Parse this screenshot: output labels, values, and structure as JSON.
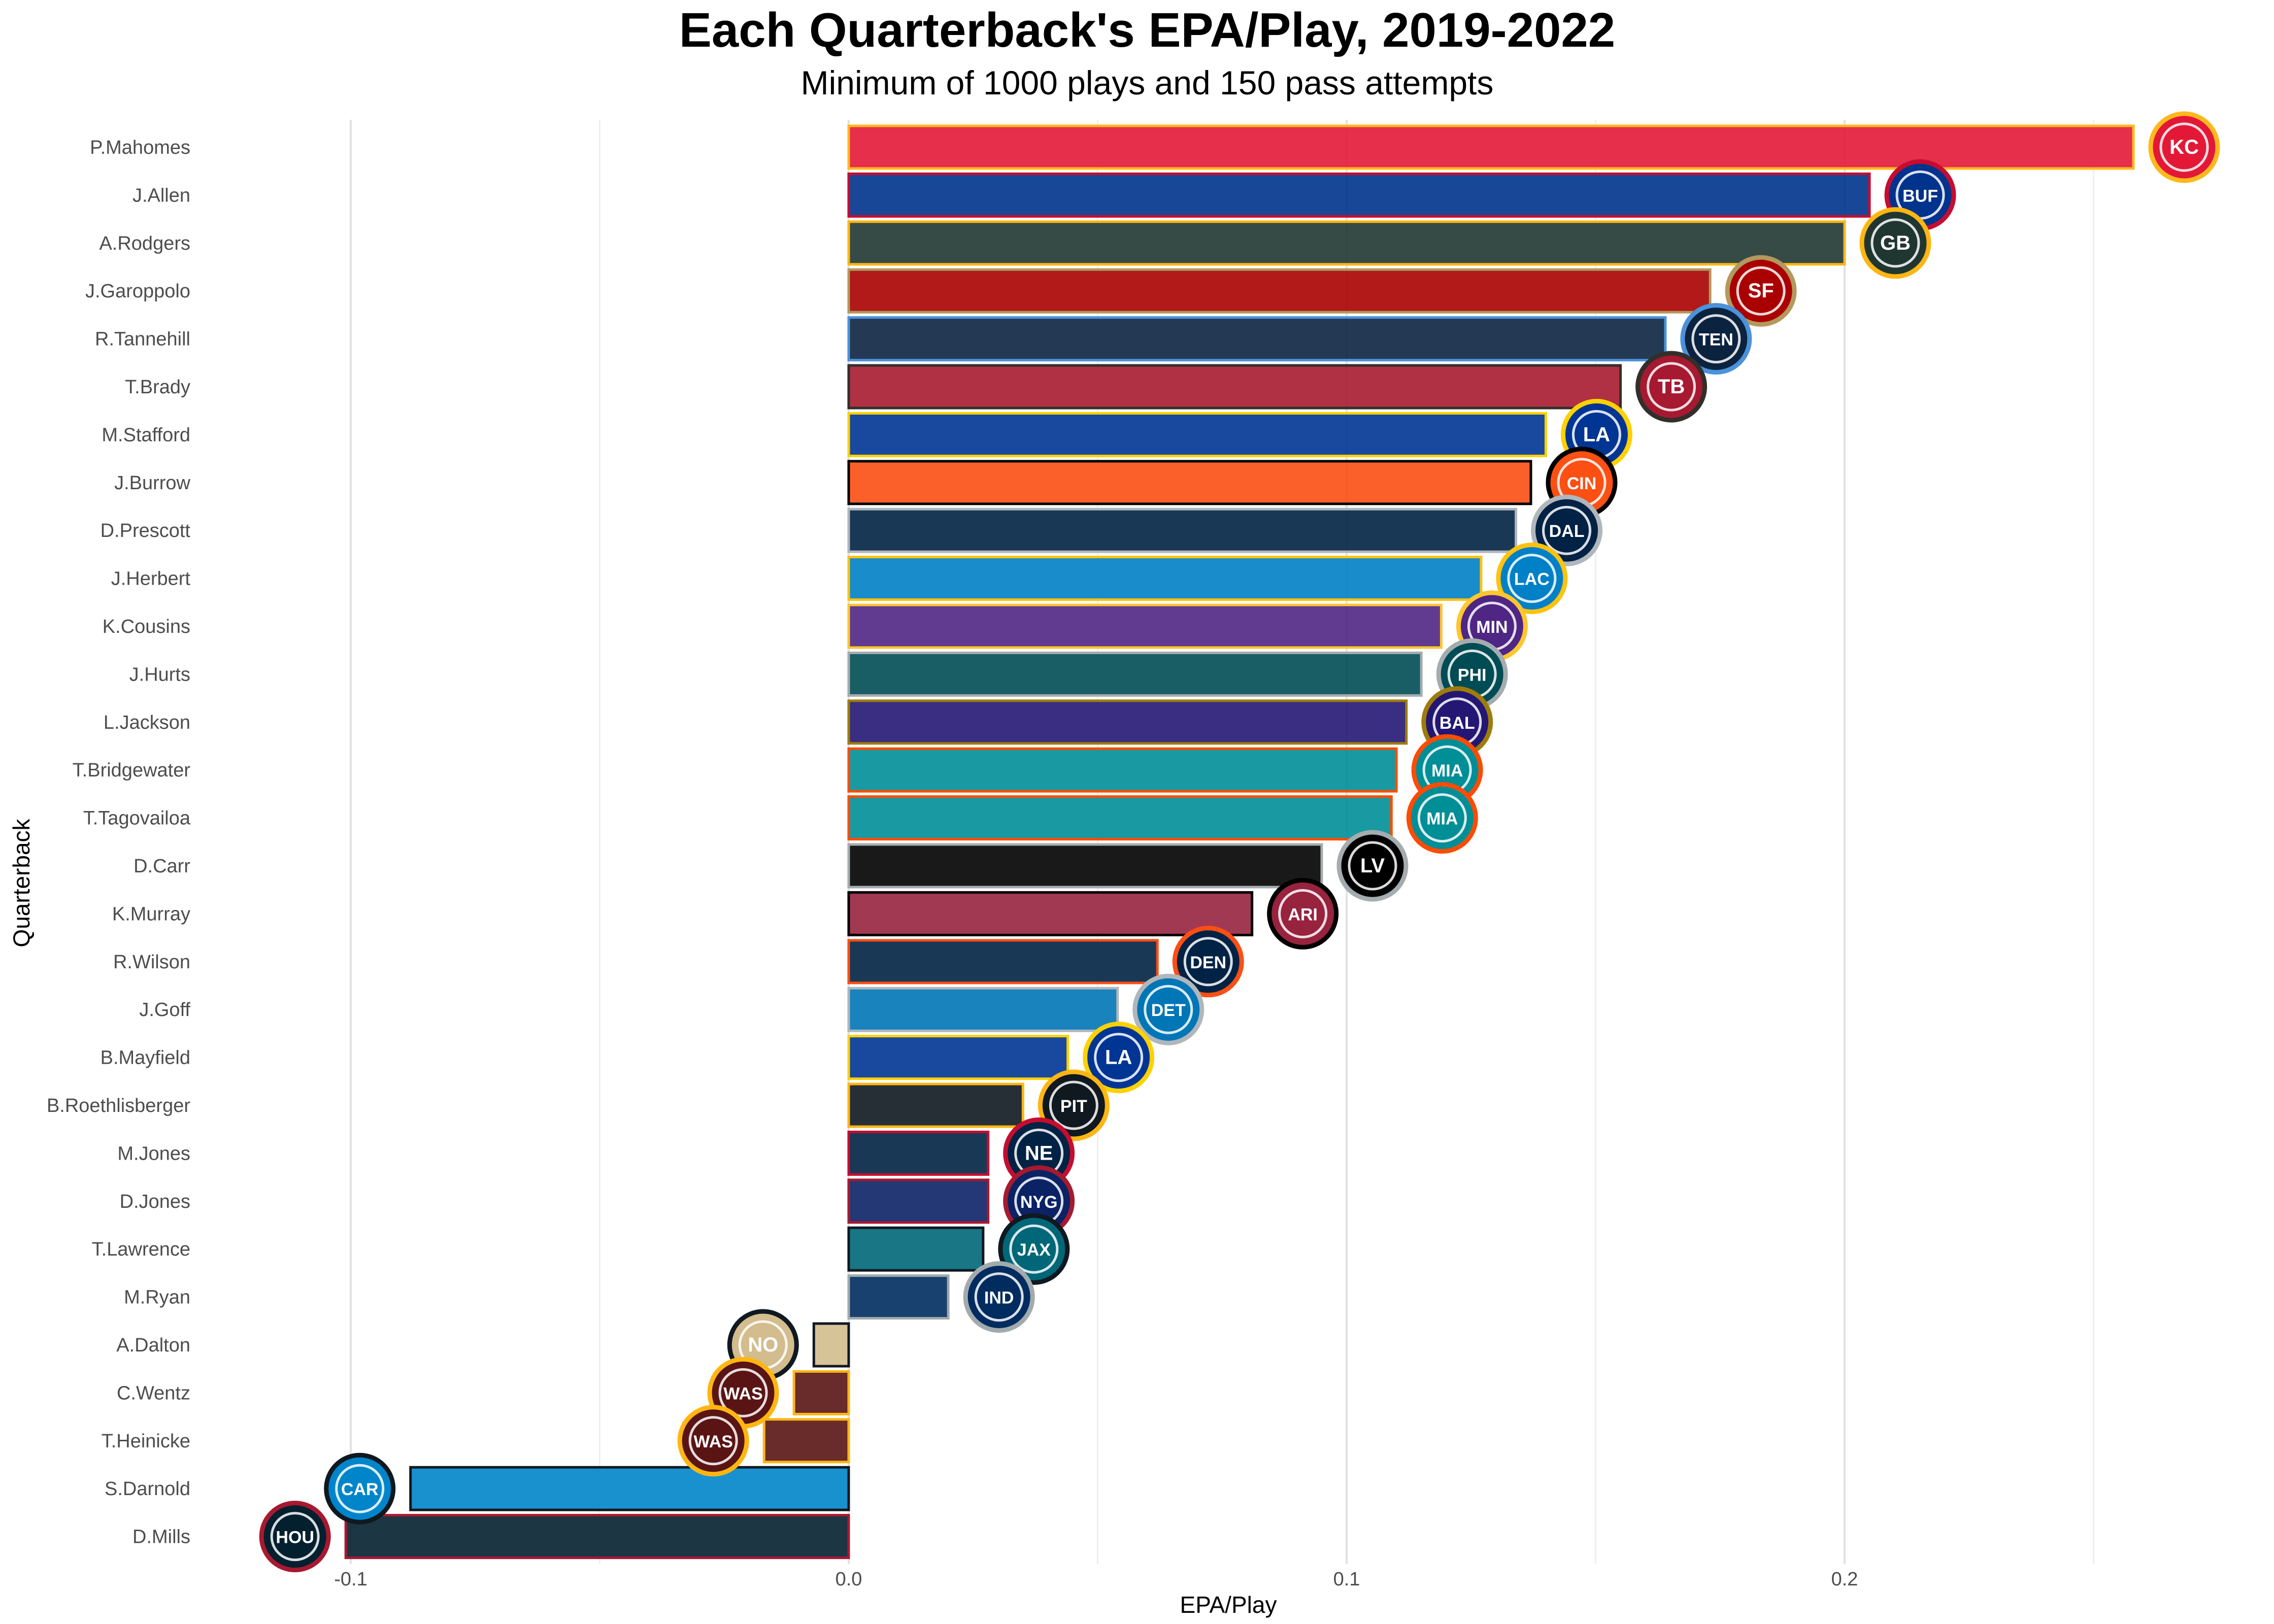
{
  "chart_data": {
    "type": "bar",
    "orientation": "horizontal",
    "title": "Each Quarterback's EPA/Play, 2019-2022",
    "subtitle": "Minimum of 1000 plays and 150 pass attempts",
    "xlabel": "EPA/Play",
    "ylabel": "Quarterback",
    "xlim": [
      -0.12,
      0.278
    ],
    "xticks": [
      -0.1,
      0.0,
      0.1,
      0.2
    ],
    "xtick_labels": [
      "-0.1",
      "0.0",
      "0.1",
      "0.2"
    ],
    "grid": true,
    "legend": "none",
    "bars": [
      {
        "name": "P.Mahomes",
        "value": 0.258,
        "team": "KC",
        "fill": "#E31837",
        "outline": "#FFB81C",
        "logo": "chiefs-arrowhead-icon"
      },
      {
        "name": "J.Allen",
        "value": 0.205,
        "team": "BUF",
        "fill": "#00338D",
        "outline": "#C60C30",
        "logo": "bills-buffalo-icon"
      },
      {
        "name": "A.Rodgers",
        "value": 0.2,
        "team": "GB",
        "fill": "#203731",
        "outline": "#FFB612",
        "logo": "packers-g-icon"
      },
      {
        "name": "J.Garoppolo",
        "value": 0.173,
        "team": "SF",
        "fill": "#AA0000",
        "outline": "#B3995D",
        "logo": "49ers-sf-oval-icon"
      },
      {
        "name": "R.Tannehill",
        "value": 0.164,
        "team": "TEN",
        "fill": "#0C2340",
        "outline": "#4B92DB",
        "logo": "titans-t-icon"
      },
      {
        "name": "T.Brady",
        "value": 0.155,
        "team": "TB",
        "fill": "#A71930",
        "outline": "#322F2B",
        "logo": "buccaneers-flag-icon"
      },
      {
        "name": "M.Stafford",
        "value": 0.14,
        "team": "LA",
        "fill": "#003594",
        "outline": "#FFD100",
        "logo": "rams-la-icon"
      },
      {
        "name": "J.Burrow",
        "value": 0.137,
        "team": "CIN",
        "fill": "#FB4F14",
        "outline": "#000000",
        "logo": "bengals-b-icon"
      },
      {
        "name": "D.Prescott",
        "value": 0.134,
        "team": "DAL",
        "fill": "#002244",
        "outline": "#B0B7BC",
        "logo": "cowboys-star-icon"
      },
      {
        "name": "J.Herbert",
        "value": 0.127,
        "team": "LAC",
        "fill": "#0080C6",
        "outline": "#FFC20E",
        "logo": "chargers-bolt-icon"
      },
      {
        "name": "K.Cousins",
        "value": 0.119,
        "team": "MIN",
        "fill": "#4F2683",
        "outline": "#FFC62F",
        "logo": "vikings-head-icon"
      },
      {
        "name": "J.Hurts",
        "value": 0.115,
        "team": "PHI",
        "fill": "#004C54",
        "outline": "#A5ACAF",
        "logo": "eagles-head-icon"
      },
      {
        "name": "L.Jackson",
        "value": 0.112,
        "team": "BAL",
        "fill": "#241773",
        "outline": "#9E7C0C",
        "logo": "ravens-head-icon"
      },
      {
        "name": "T.Bridgewater",
        "value": 0.11,
        "team": "MIA",
        "fill": "#008E97",
        "outline": "#FC4C02",
        "logo": "dolphins-icon"
      },
      {
        "name": "T.Tagovailoa",
        "value": 0.109,
        "team": "MIA",
        "fill": "#008E97",
        "outline": "#FC4C02",
        "logo": "dolphins-icon"
      },
      {
        "name": "D.Carr",
        "value": 0.095,
        "team": "LV",
        "fill": "#000000",
        "outline": "#A5ACAF",
        "logo": "raiders-shield-icon"
      },
      {
        "name": "K.Murray",
        "value": 0.081,
        "team": "ARI",
        "fill": "#97233F",
        "outline": "#000000",
        "logo": "cardinals-head-icon"
      },
      {
        "name": "R.Wilson",
        "value": 0.062,
        "team": "DEN",
        "fill": "#002244",
        "outline": "#FB4F14",
        "logo": "broncos-head-icon"
      },
      {
        "name": "J.Goff",
        "value": 0.054,
        "team": "DET",
        "fill": "#0076B6",
        "outline": "#B0B7BC",
        "logo": "lions-icon"
      },
      {
        "name": "B.Mayfield",
        "value": 0.044,
        "team": "LA",
        "fill": "#003594",
        "outline": "#FFD100",
        "logo": "rams-la-icon"
      },
      {
        "name": "B.Roethlisberger",
        "value": 0.035,
        "team": "PIT",
        "fill": "#101820",
        "outline": "#FFB612",
        "logo": "steelers-icon"
      },
      {
        "name": "M.Jones",
        "value": 0.028,
        "team": "NE",
        "fill": "#002244",
        "outline": "#C60C30",
        "logo": "patriots-head-icon"
      },
      {
        "name": "D.Jones",
        "value": 0.028,
        "team": "NYG",
        "fill": "#0B2265",
        "outline": "#A71930",
        "logo": "giants-ny-icon"
      },
      {
        "name": "T.Lawrence",
        "value": 0.027,
        "team": "JAX",
        "fill": "#006778",
        "outline": "#101820",
        "logo": "jaguars-head-icon"
      },
      {
        "name": "M.Ryan",
        "value": 0.02,
        "team": "IND",
        "fill": "#002C5F",
        "outline": "#A2AAAD",
        "logo": "colts-horseshoe-icon"
      },
      {
        "name": "A.Dalton",
        "value": -0.007,
        "team": "NO",
        "fill": "#D3BC8D",
        "outline": "#101820",
        "logo": "saints-fleur-icon"
      },
      {
        "name": "C.Wentz",
        "value": -0.011,
        "team": "WAS",
        "fill": "#5A1414",
        "outline": "#FFB612",
        "logo": "commanders-w-icon"
      },
      {
        "name": "T.Heinicke",
        "value": -0.017,
        "team": "WAS",
        "fill": "#5A1414",
        "outline": "#FFB612",
        "logo": "commanders-w-icon"
      },
      {
        "name": "S.Darnold",
        "value": -0.088,
        "team": "CAR",
        "fill": "#0085CA",
        "outline": "#101820",
        "logo": "panthers-head-icon"
      },
      {
        "name": "D.Mills",
        "value": -0.101,
        "team": "HOU",
        "fill": "#03202F",
        "outline": "#A71930",
        "logo": "texans-head-icon"
      }
    ]
  }
}
